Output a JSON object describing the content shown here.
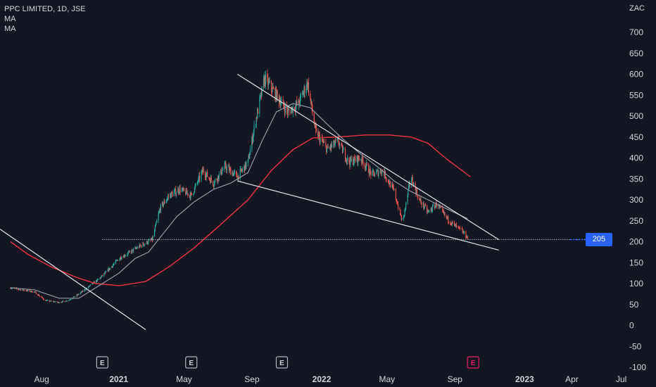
{
  "header": {
    "title": "PPC LIMITED, 1D, JSE",
    "ma1": "MA",
    "ma2": "MA",
    "unit": "ZAC"
  },
  "last_price_label": "205",
  "chart_data": {
    "type": "candlestick",
    "ylim": [
      -100,
      700
    ],
    "y_ticks": [
      700,
      650,
      600,
      550,
      500,
      450,
      400,
      350,
      300,
      250,
      200,
      150,
      100,
      50,
      0,
      -50,
      -100
    ],
    "x_ticks": [
      "Aug",
      "2021",
      "May",
      "Sep",
      "2022",
      "May",
      "Sep",
      "2023",
      "Apr",
      "Jul"
    ],
    "x_tick_bold": [
      false,
      true,
      false,
      false,
      true,
      false,
      false,
      true,
      false,
      false
    ],
    "dates_range": [
      "2020-07",
      "2023-07"
    ],
    "price_path": [
      [
        "2020-07-20",
        90
      ],
      [
        "2020-08-10",
        85
      ],
      [
        "2020-09-01",
        80
      ],
      [
        "2020-09-20",
        60
      ],
      [
        "2020-10-15",
        55
      ],
      [
        "2020-11-01",
        60
      ],
      [
        "2020-11-20",
        75
      ],
      [
        "2020-12-10",
        95
      ],
      [
        "2020-12-25",
        110
      ],
      [
        "2021-01-10",
        130
      ],
      [
        "2021-01-31",
        160
      ],
      [
        "2021-02-20",
        175
      ],
      [
        "2021-03-10",
        190
      ],
      [
        "2021-03-25",
        200
      ],
      [
        "2021-04-01",
        205
      ],
      [
        "2021-04-15",
        280
      ],
      [
        "2021-05-01",
        310
      ],
      [
        "2021-05-20",
        325
      ],
      [
        "2021-06-10",
        310
      ],
      [
        "2021-07-01",
        370
      ],
      [
        "2021-07-20",
        340
      ],
      [
        "2021-08-10",
        380
      ],
      [
        "2021-09-01",
        355
      ],
      [
        "2021-09-20",
        390
      ],
      [
        "2021-10-01",
        470
      ],
      [
        "2021-10-20",
        590
      ],
      [
        "2021-11-10",
        550
      ],
      [
        "2021-12-01",
        510
      ],
      [
        "2021-12-20",
        530
      ],
      [
        "2022-01-05",
        580
      ],
      [
        "2022-01-20",
        460
      ],
      [
        "2022-02-10",
        420
      ],
      [
        "2022-03-01",
        440
      ],
      [
        "2022-03-20",
        390
      ],
      [
        "2022-04-10",
        400
      ],
      [
        "2022-05-01",
        360
      ],
      [
        "2022-05-20",
        370
      ],
      [
        "2022-06-10",
        320
      ],
      [
        "2022-06-25",
        245
      ],
      [
        "2022-07-10",
        355
      ],
      [
        "2022-07-25",
        300
      ],
      [
        "2022-08-10",
        270
      ],
      [
        "2022-08-25",
        290
      ],
      [
        "2022-09-10",
        260
      ],
      [
        "2022-09-25",
        240
      ],
      [
        "2022-10-10",
        225
      ],
      [
        "2022-10-20",
        210
      ]
    ],
    "ma_short": [
      [
        "2020-07-20",
        90
      ],
      [
        "2020-09-01",
        85
      ],
      [
        "2020-10-15",
        65
      ],
      [
        "2020-11-20",
        65
      ],
      [
        "2020-12-20",
        90
      ],
      [
        "2021-01-31",
        125
      ],
      [
        "2021-03-01",
        160
      ],
      [
        "2021-03-25",
        175
      ],
      [
        "2021-04-15",
        210
      ],
      [
        "2021-05-15",
        260
      ],
      [
        "2021-06-15",
        295
      ],
      [
        "2021-07-20",
        325
      ],
      [
        "2021-08-20",
        340
      ],
      [
        "2021-09-20",
        365
      ],
      [
        "2021-10-15",
        440
      ],
      [
        "2021-11-10",
        510
      ],
      [
        "2021-12-10",
        530
      ],
      [
        "2022-01-10",
        520
      ],
      [
        "2022-02-10",
        480
      ],
      [
        "2022-03-10",
        445
      ],
      [
        "2022-04-10",
        410
      ],
      [
        "2022-05-10",
        380
      ],
      [
        "2022-06-10",
        345
      ],
      [
        "2022-07-10",
        320
      ],
      [
        "2022-08-10",
        300
      ],
      [
        "2022-09-10",
        280
      ],
      [
        "2022-10-20",
        255
      ]
    ],
    "ma_long": [
      [
        "2020-07-20",
        200
      ],
      [
        "2020-08-20",
        170
      ],
      [
        "2020-10-01",
        140
      ],
      [
        "2020-11-15",
        115
      ],
      [
        "2020-12-20",
        100
      ],
      [
        "2021-02-01",
        95
      ],
      [
        "2021-03-20",
        105
      ],
      [
        "2021-05-01",
        140
      ],
      [
        "2021-06-15",
        185
      ],
      [
        "2021-08-01",
        240
      ],
      [
        "2021-09-20",
        300
      ],
      [
        "2021-11-01",
        370
      ],
      [
        "2021-12-10",
        420
      ],
      [
        "2022-01-15",
        448
      ],
      [
        "2022-03-01",
        450
      ],
      [
        "2022-04-20",
        455
      ],
      [
        "2022-06-01",
        455
      ],
      [
        "2022-07-10",
        450
      ],
      [
        "2022-08-10",
        435
      ],
      [
        "2022-09-10",
        400
      ],
      [
        "2022-10-25",
        355
      ]
    ],
    "trendlines": [
      {
        "from": [
          "2020-07-01",
          230
        ],
        "to": [
          "2021-03-20",
          -10
        ]
      },
      {
        "from": [
          "2021-09-01",
          600
        ],
        "to": [
          "2022-12-15",
          205
        ]
      },
      {
        "from": [
          "2021-09-01",
          345
        ],
        "to": [
          "2022-12-15",
          180
        ]
      }
    ],
    "horizontal_level": 205,
    "level_start": "2021-01-01",
    "earnings_markers": [
      "2021-01-01",
      "2021-06-10",
      "2021-11-20",
      "2022-10-30"
    ],
    "earnings_label": "E",
    "colors": {
      "background": "#131722",
      "up": "#26a69a",
      "down": "#ef5350",
      "ma_short": "#9598a1",
      "ma_long": "#e53343",
      "trend": "#e0e3eb",
      "axis_text": "#d1d4dc",
      "badge": "#2962ff",
      "earnings_future": "#e91e63"
    }
  }
}
